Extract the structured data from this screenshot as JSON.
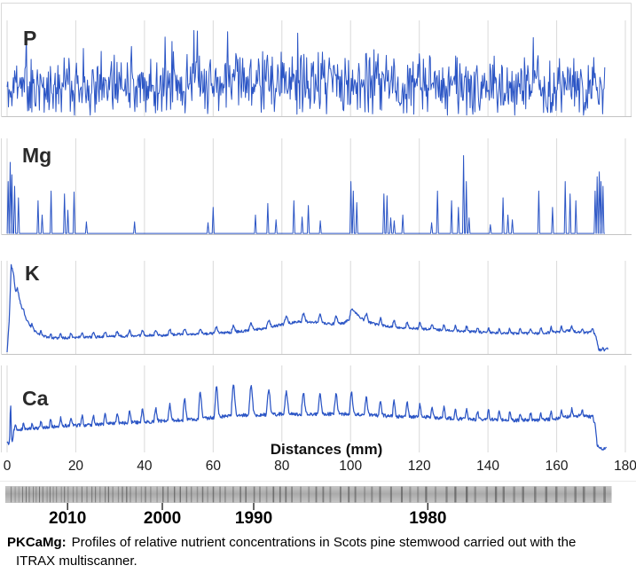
{
  "figure": {
    "background": "#ffffff",
    "accent_blue": "#2B55C5",
    "gridline_color": "#D9D9D9",
    "axis_line_color": "#C4C4C4",
    "text_color": "#1A1A1A"
  },
  "axis": {
    "title": "Distances (mm)",
    "ticks": [
      0,
      20,
      40,
      60,
      80,
      100,
      120,
      140,
      160,
      180
    ],
    "range_mm": [
      0,
      180
    ]
  },
  "years": {
    "items": [
      {
        "label": "2010",
        "mm": 17.6
      },
      {
        "label": "2000",
        "mm": 45.2
      },
      {
        "label": "1990",
        "mm": 71.8
      },
      {
        "label": "1980",
        "mm": 122.5
      }
    ]
  },
  "wood_strip": {
    "x_range_mm": [
      0,
      176
    ],
    "ring_spacing_anchors_mm": [
      [
        0,
        1.0
      ],
      [
        20,
        1.2
      ],
      [
        40,
        1.5
      ],
      [
        70,
        2.0
      ],
      [
        100,
        2.5
      ],
      [
        130,
        2.9
      ],
      [
        176,
        3.2
      ]
    ],
    "base_color_light": "#c6c6c6",
    "base_color_mid": "#aaaaaa",
    "ring_color": "#4f4f4f",
    "seed": 5
  },
  "caption": {
    "label": "PKCaMg:",
    "line1": "Profiles of relative nutrient concentrations in Scots pine stemwood carried out with the",
    "line2": "ITRAX multiscanner."
  },
  "chart_data": [
    {
      "id": "P",
      "label": "P",
      "type": "line",
      "style": "dense-noise",
      "x_range_mm": [
        0,
        174
      ],
      "ylim": [
        0,
        1
      ],
      "grid": "vertical-every-20mm",
      "synthesis": {
        "seed": 11,
        "step_mm": 0.2,
        "base_anchors": [
          [
            0,
            0.3
          ],
          [
            30,
            0.33
          ],
          [
            60,
            0.35
          ],
          [
            90,
            0.36
          ],
          [
            120,
            0.33
          ],
          [
            150,
            0.31
          ],
          [
            174,
            0.3
          ]
        ],
        "noise_amp": 0.26,
        "spike_prob": 0.035,
        "spike_gain": 0.34,
        "dip_prob": 0.04,
        "clamp": [
          0.01,
          0.92
        ]
      }
    },
    {
      "id": "Mg",
      "label": "Mg",
      "type": "line",
      "style": "sparse-spikes",
      "x_range_mm": [
        0,
        174
      ],
      "ylim": [
        0,
        1
      ],
      "grid": "vertical-every-20mm",
      "baseline": 0.008,
      "spikes_mm_height": [
        [
          0.3,
          0.55
        ],
        [
          0.9,
          0.75
        ],
        [
          1.4,
          0.62
        ],
        [
          2.2,
          0.5
        ],
        [
          3.3,
          0.38
        ],
        [
          9.0,
          0.35
        ],
        [
          10.2,
          0.2
        ],
        [
          12.8,
          0.45
        ],
        [
          16.7,
          0.42
        ],
        [
          17.7,
          0.25
        ],
        [
          19.5,
          0.44
        ],
        [
          23.1,
          0.13
        ],
        [
          37.1,
          0.13
        ],
        [
          58.5,
          0.12
        ],
        [
          60.0,
          0.28
        ],
        [
          72.3,
          0.2
        ],
        [
          75.9,
          0.32
        ],
        [
          78.3,
          0.15
        ],
        [
          83.5,
          0.35
        ],
        [
          85.9,
          0.18
        ],
        [
          87.7,
          0.3
        ],
        [
          91.2,
          0.14
        ],
        [
          100.1,
          0.55
        ],
        [
          100.8,
          0.45
        ],
        [
          101.8,
          0.33
        ],
        [
          109.7,
          0.42
        ],
        [
          110.6,
          0.4
        ],
        [
          111.7,
          0.17
        ],
        [
          112.7,
          0.14
        ],
        [
          115.2,
          0.2
        ],
        [
          123.6,
          0.12
        ],
        [
          125.3,
          0.45
        ],
        [
          129.4,
          0.35
        ],
        [
          131.4,
          0.28
        ],
        [
          132.9,
          0.82
        ],
        [
          133.7,
          0.55
        ],
        [
          134.5,
          0.17
        ],
        [
          140.7,
          0.1
        ],
        [
          144.4,
          0.38
        ],
        [
          145.8,
          0.2
        ],
        [
          147.1,
          0.15
        ],
        [
          154.8,
          0.45
        ],
        [
          158.8,
          0.28
        ],
        [
          162.5,
          0.55
        ],
        [
          163.9,
          0.42
        ],
        [
          165.6,
          0.35
        ],
        [
          171.2,
          0.45
        ],
        [
          171.8,
          0.6
        ],
        [
          172.4,
          0.65
        ],
        [
          172.9,
          0.55
        ],
        [
          173.5,
          0.5
        ]
      ]
    },
    {
      "id": "K",
      "label": "K",
      "type": "line",
      "style": "profile-with-annual-rings",
      "x_range_mm": [
        0,
        175
      ],
      "ylim": [
        0,
        1
      ],
      "grid": "vertical-every-20mm",
      "synthesis": {
        "seed": 23,
        "step_mm": 0.15,
        "noise_amp": 0.013,
        "base_anchors": [
          [
            0,
            0.03
          ],
          [
            0.6,
            0.35
          ],
          [
            1.2,
            0.95
          ],
          [
            1.8,
            0.88
          ],
          [
            2.4,
            0.66
          ],
          [
            3.0,
            0.7
          ],
          [
            3.8,
            0.56
          ],
          [
            4.6,
            0.45
          ],
          [
            5.5,
            0.38
          ],
          [
            6.5,
            0.31
          ],
          [
            8,
            0.25
          ],
          [
            10,
            0.2
          ],
          [
            13,
            0.17
          ],
          [
            16,
            0.17
          ],
          [
            20,
            0.18
          ],
          [
            25,
            0.18
          ],
          [
            30,
            0.19
          ],
          [
            35,
            0.19
          ],
          [
            40,
            0.2
          ],
          [
            45,
            0.2
          ],
          [
            50,
            0.21
          ],
          [
            55,
            0.21
          ],
          [
            60,
            0.22
          ],
          [
            65,
            0.23
          ],
          [
            70,
            0.25
          ],
          [
            74,
            0.27
          ],
          [
            78,
            0.3
          ],
          [
            82,
            0.33
          ],
          [
            86,
            0.35
          ],
          [
            90,
            0.34
          ],
          [
            94,
            0.32
          ],
          [
            98,
            0.33
          ],
          [
            100,
            0.38
          ],
          [
            101,
            0.45
          ],
          [
            102,
            0.42
          ],
          [
            104,
            0.36
          ],
          [
            107,
            0.32
          ],
          [
            110,
            0.3
          ],
          [
            115,
            0.28
          ],
          [
            120,
            0.27
          ],
          [
            125,
            0.26
          ],
          [
            130,
            0.25
          ],
          [
            135,
            0.24
          ],
          [
            140,
            0.23
          ],
          [
            145,
            0.22
          ],
          [
            150,
            0.22
          ],
          [
            155,
            0.22
          ],
          [
            158,
            0.23
          ],
          [
            161,
            0.24
          ],
          [
            164,
            0.25
          ],
          [
            167,
            0.23
          ],
          [
            169,
            0.23
          ],
          [
            170.5,
            0.24
          ],
          [
            171.5,
            0.18
          ],
          [
            172.2,
            0.05
          ],
          [
            173.5,
            0.03
          ],
          [
            175,
            0.06
          ]
        ],
        "ring_amp_anchors": [
          [
            0,
            0.0
          ],
          [
            5,
            0.04
          ],
          [
            20,
            0.05
          ],
          [
            40,
            0.06
          ],
          [
            60,
            0.06
          ],
          [
            80,
            0.08
          ],
          [
            100,
            0.09
          ],
          [
            110,
            0.07
          ],
          [
            120,
            0.06
          ],
          [
            140,
            0.05
          ],
          [
            160,
            0.06
          ],
          [
            175,
            0.03
          ]
        ],
        "ring_period_anchors": [
          [
            0,
            2.2
          ],
          [
            20,
            3.2
          ],
          [
            40,
            3.8
          ],
          [
            55,
            4.6
          ],
          [
            70,
            5.2
          ],
          [
            85,
            5.0
          ],
          [
            100,
            4.4
          ],
          [
            115,
            3.8
          ],
          [
            130,
            3.3
          ],
          [
            150,
            3.0
          ],
          [
            176,
            3.0
          ]
        ]
      }
    },
    {
      "id": "Ca",
      "label": "Ca",
      "type": "line",
      "style": "profile-with-annual-rings",
      "x_range_mm": [
        0,
        174.5
      ],
      "ylim": [
        0,
        1
      ],
      "grid": "vertical-every-20mm",
      "synthesis": {
        "seed": 41,
        "step_mm": 0.15,
        "noise_amp": 0.02,
        "base_anchors": [
          [
            0,
            0.05
          ],
          [
            0.7,
            0.1
          ],
          [
            1.0,
            0.6
          ],
          [
            1.4,
            0.08
          ],
          [
            2,
            0.26
          ],
          [
            5,
            0.27
          ],
          [
            10,
            0.28
          ],
          [
            15,
            0.3
          ],
          [
            20,
            0.31
          ],
          [
            25,
            0.32
          ],
          [
            30,
            0.33
          ],
          [
            35,
            0.34
          ],
          [
            40,
            0.35
          ],
          [
            45,
            0.36
          ],
          [
            50,
            0.37
          ],
          [
            55,
            0.38
          ],
          [
            60,
            0.4
          ],
          [
            65,
            0.42
          ],
          [
            70,
            0.43
          ],
          [
            75,
            0.43
          ],
          [
            80,
            0.44
          ],
          [
            85,
            0.44
          ],
          [
            90,
            0.44
          ],
          [
            95,
            0.44
          ],
          [
            100,
            0.44
          ],
          [
            105,
            0.43
          ],
          [
            110,
            0.42
          ],
          [
            115,
            0.41
          ],
          [
            120,
            0.41
          ],
          [
            125,
            0.4
          ],
          [
            130,
            0.39
          ],
          [
            135,
            0.38
          ],
          [
            140,
            0.38
          ],
          [
            145,
            0.37
          ],
          [
            150,
            0.37
          ],
          [
            155,
            0.37
          ],
          [
            160,
            0.39
          ],
          [
            163,
            0.41
          ],
          [
            166,
            0.42
          ],
          [
            169,
            0.42
          ],
          [
            170.5,
            0.4
          ],
          [
            171.3,
            0.3
          ],
          [
            171.8,
            0.07
          ],
          [
            173,
            0.04
          ],
          [
            174.5,
            0.05
          ]
        ],
        "ring_amp_anchors": [
          [
            0,
            0.06
          ],
          [
            10,
            0.08
          ],
          [
            20,
            0.1
          ],
          [
            30,
            0.12
          ],
          [
            40,
            0.14
          ],
          [
            50,
            0.2
          ],
          [
            55,
            0.3
          ],
          [
            60,
            0.34
          ],
          [
            65,
            0.36
          ],
          [
            70,
            0.36
          ],
          [
            75,
            0.3
          ],
          [
            80,
            0.26
          ],
          [
            85,
            0.24
          ],
          [
            90,
            0.22
          ],
          [
            95,
            0.24
          ],
          [
            100,
            0.26
          ],
          [
            105,
            0.2
          ],
          [
            110,
            0.16
          ],
          [
            115,
            0.18
          ],
          [
            120,
            0.14
          ],
          [
            125,
            0.12
          ],
          [
            130,
            0.12
          ],
          [
            135,
            0.1
          ],
          [
            140,
            0.1
          ],
          [
            145,
            0.09
          ],
          [
            150,
            0.08
          ],
          [
            155,
            0.08
          ],
          [
            160,
            0.09
          ],
          [
            165,
            0.08
          ],
          [
            168,
            0.07
          ],
          [
            170,
            0.04
          ],
          [
            171.5,
            0.0
          ],
          [
            174.5,
            0.0
          ]
        ],
        "ring_period_anchors": [
          [
            0,
            2.2
          ],
          [
            20,
            3.2
          ],
          [
            40,
            3.8
          ],
          [
            55,
            4.6
          ],
          [
            70,
            5.2
          ],
          [
            85,
            5.0
          ],
          [
            100,
            4.4
          ],
          [
            115,
            3.8
          ],
          [
            130,
            3.3
          ],
          [
            150,
            3.0
          ],
          [
            176,
            3.0
          ]
        ]
      }
    }
  ]
}
